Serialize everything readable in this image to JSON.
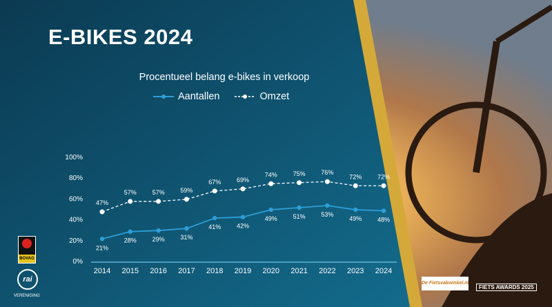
{
  "header": {
    "title": "E-BIKES 2024"
  },
  "colors": {
    "aantallen": "#2e9fd8",
    "omzet": "#ffffff",
    "accent": "#d4a93a"
  },
  "logos": {
    "bovag": "BOVAG",
    "rai": "rai",
    "rai_sub": "VERENIGING",
    "fietsvakwinkel": "De Fietsvakwinkel.nl",
    "awards": "FIETS AWARDS 2025"
  },
  "chart_data": {
    "type": "line",
    "title": "Procentueel belang e-bikes in verkoop",
    "categories": [
      "2014",
      "2015",
      "2016",
      "2017",
      "2018",
      "2019",
      "2020",
      "2021",
      "2022",
      "2023",
      "2024"
    ],
    "series": [
      {
        "name": "Aantallen",
        "values": [
          21,
          28,
          29,
          31,
          41,
          42,
          49,
          51,
          53,
          49,
          48
        ]
      },
      {
        "name": "Omzet",
        "values": [
          47,
          57,
          57,
          59,
          67,
          69,
          74,
          75,
          76,
          72,
          72
        ]
      }
    ],
    "yticks": [
      "0%",
      "20%",
      "40%",
      "60%",
      "80%",
      "100%"
    ],
    "ylim": [
      0,
      100
    ],
    "legend": "top",
    "grid": false
  }
}
